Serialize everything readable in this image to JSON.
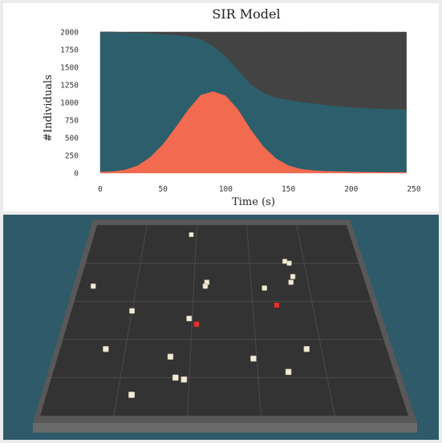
{
  "chart_data": {
    "type": "area",
    "title": "SIR Model",
    "xlabel": "Time (s)",
    "ylabel": "#Individuals",
    "xlim": [
      0,
      250
    ],
    "ylim": [
      0,
      2000
    ],
    "xticks": [
      0,
      50,
      100,
      150,
      200,
      250
    ],
    "yticks": [
      0,
      250,
      500,
      750,
      1000,
      1250,
      1500,
      1750,
      2000
    ],
    "total": 2000,
    "grid": false,
    "legend": "none",
    "stacking": "infected bottom, susceptible middle, recovered top",
    "x": [
      0,
      10,
      20,
      30,
      40,
      50,
      60,
      70,
      80,
      90,
      100,
      110,
      120,
      130,
      140,
      150,
      160,
      170,
      180,
      190,
      200,
      210,
      220,
      230,
      240,
      244
    ],
    "series": [
      {
        "key": "infected",
        "color": "#f26a4f",
        "values": [
          20,
          25,
          50,
          110,
          230,
          410,
          650,
          900,
          1110,
          1160,
          1100,
          900,
          620,
          380,
          210,
          110,
          60,
          40,
          30,
          25,
          20,
          18,
          16,
          15,
          15,
          15
        ]
      },
      {
        "key": "susceptible",
        "color": "#2c5f6b",
        "values": [
          1980,
          1975,
          1945,
          1880,
          1755,
          1560,
          1310,
          1040,
          790,
          640,
          560,
          560,
          640,
          760,
          860,
          930,
          950,
          950,
          935,
          925,
          915,
          905,
          900,
          893,
          890,
          890
        ]
      },
      {
        "key": "recovered",
        "color": "#434343",
        "values": [
          0,
          0,
          5,
          10,
          15,
          30,
          40,
          60,
          100,
          200,
          340,
          540,
          740,
          860,
          930,
          960,
          990,
          1010,
          1035,
          1050,
          1065,
          1077,
          1084,
          1092,
          1095,
          1095
        ]
      }
    ]
  },
  "simulation": {
    "floor_color": "#333333",
    "wall_color": "#5a5a5a",
    "background_color": "#2e5a69",
    "healthy_color": "#f2ead8",
    "infected_color": "#e8322c",
    "grid_divisions": 5,
    "agents": [
      {
        "state": "healthy",
        "u": 0.38,
        "v": 0.05
      },
      {
        "state": "healthy",
        "u": 0.73,
        "v": 0.19
      },
      {
        "state": "healthy",
        "u": 0.745,
        "v": 0.2
      },
      {
        "state": "healthy",
        "u": 0.75,
        "v": 0.27
      },
      {
        "state": "healthy",
        "u": 0.74,
        "v": 0.3
      },
      {
        "state": "healthy",
        "u": 0.05,
        "v": 0.32
      },
      {
        "state": "healthy",
        "u": 0.445,
        "v": 0.3
      },
      {
        "state": "healthy",
        "u": 0.44,
        "v": 0.32
      },
      {
        "state": "healthy",
        "u": 0.645,
        "v": 0.33
      },
      {
        "state": "infected",
        "u": 0.68,
        "v": 0.42
      },
      {
        "state": "healthy",
        "u": 0.2,
        "v": 0.45
      },
      {
        "state": "healthy",
        "u": 0.39,
        "v": 0.49
      },
      {
        "state": "infected",
        "u": 0.415,
        "v": 0.52
      },
      {
        "state": "healthy",
        "u": 0.14,
        "v": 0.65
      },
      {
        "state": "healthy",
        "u": 0.755,
        "v": 0.65
      },
      {
        "state": "healthy",
        "u": 0.34,
        "v": 0.69
      },
      {
        "state": "healthy",
        "u": 0.59,
        "v": 0.7
      },
      {
        "state": "healthy",
        "u": 0.69,
        "v": 0.77
      },
      {
        "state": "healthy",
        "u": 0.36,
        "v": 0.8
      },
      {
        "state": "healthy",
        "u": 0.385,
        "v": 0.81
      },
      {
        "state": "healthy",
        "u": 0.24,
        "v": 0.89
      }
    ]
  }
}
